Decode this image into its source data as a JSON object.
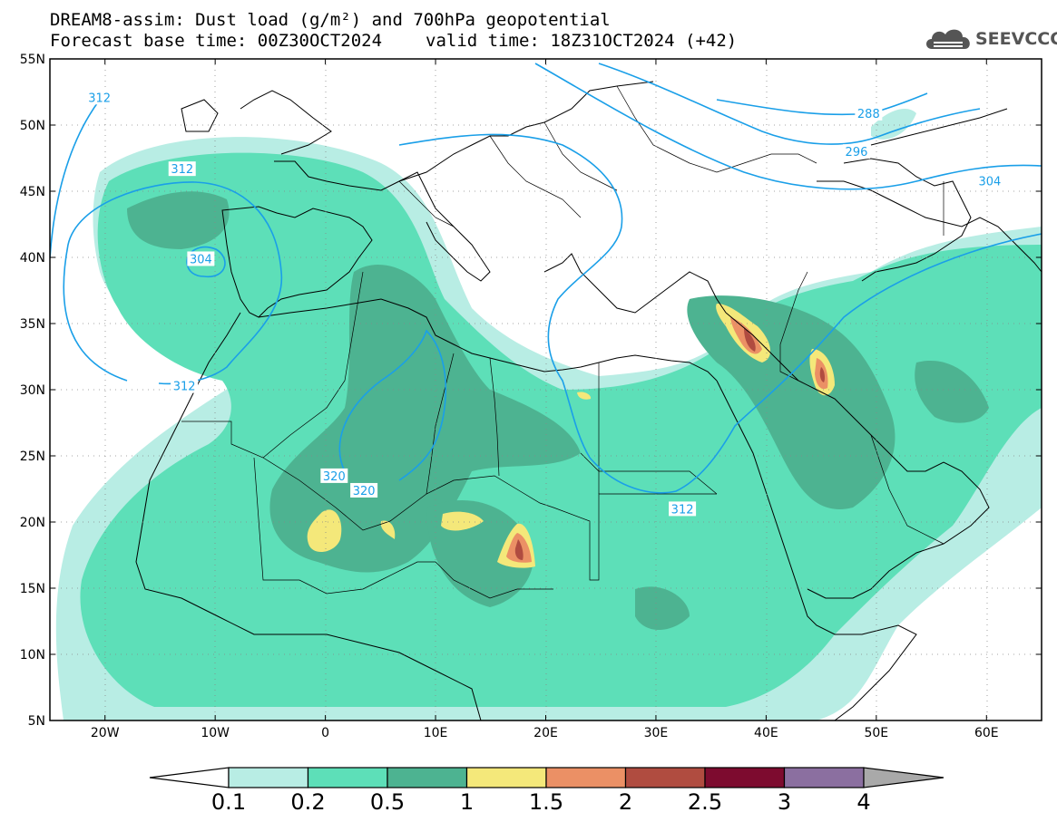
{
  "header": {
    "title_line1": "DREAM8-assim: Dust load (g/m²) and 700hPa geopotential",
    "title_line2_base": "Forecast base time: 00Z30OCT2024",
    "title_line2_valid": "valid time: 18Z31OCT2024 (+42)"
  },
  "logo": {
    "text": "SEEVCCC",
    "icon": "cloud-icon",
    "color": "#555555"
  },
  "map": {
    "projection": "cylindrical-equidistant",
    "lon_range": [
      -25,
      65
    ],
    "lat_range": [
      5,
      55
    ],
    "lat_labels": [
      "55N",
      "50N",
      "45N",
      "40N",
      "35N",
      "30N",
      "25N",
      "20N",
      "15N",
      "10N",
      "5N"
    ],
    "lon_labels": [
      "20W",
      "10W",
      "0",
      "10E",
      "20E",
      "30E",
      "40E",
      "50E",
      "60E"
    ],
    "grid": "dotted",
    "contour_color": "#1a9fe8",
    "contour_labels": [
      {
        "text": "312",
        "lon": -20.5,
        "lat": 52.1
      },
      {
        "text": "312",
        "lon": -13,
        "lat": 46.7
      },
      {
        "text": "304",
        "lon": -11.3,
        "lat": 39.9
      },
      {
        "text": "312",
        "lon": -12.8,
        "lat": 30.3
      },
      {
        "text": "320",
        "lon": 0.8,
        "lat": 23.5
      },
      {
        "text": "320",
        "lon": 3.5,
        "lat": 22.4
      },
      {
        "text": "312",
        "lon": 32.4,
        "lat": 21.0
      },
      {
        "text": "288",
        "lon": 49.3,
        "lat": 50.9
      },
      {
        "text": "296",
        "lon": 48.2,
        "lat": 48.0
      },
      {
        "text": "304",
        "lon": 60.3,
        "lat": 45.8
      }
    ]
  },
  "colorbar": {
    "labels": [
      "0.1",
      "0.2",
      "0.5",
      "1",
      "1.5",
      "2",
      "2.5",
      "3",
      "4"
    ],
    "colors": [
      "#b8ede4",
      "#5ddfb8",
      "#4db391",
      "#f4e87a",
      "#eb9065",
      "#b04c40",
      "#7d0b2f",
      "#8b6fa0"
    ],
    "under_color": "#ffffff",
    "over_color": "#a9a9a9"
  }
}
